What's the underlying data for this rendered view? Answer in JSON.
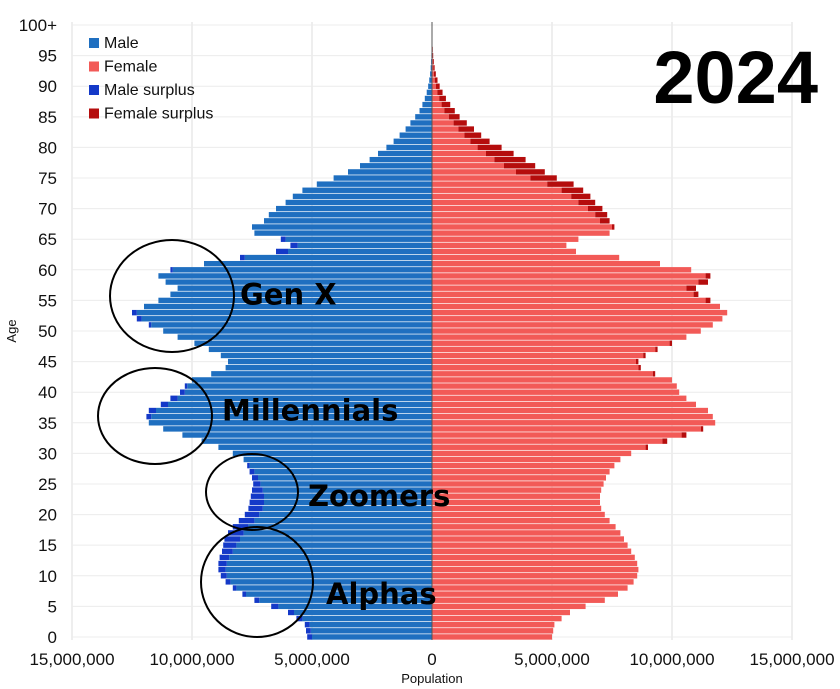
{
  "chart_data": {
    "type": "bar",
    "orientation": "horizontal-population-pyramid",
    "year_label": "2024",
    "xlabel": "Population",
    "ylabel": "Age",
    "xlim": [
      -15000000,
      15000000
    ],
    "x_ticks": [
      {
        "value": -15000000,
        "label": "15,000,000"
      },
      {
        "value": -10000000,
        "label": "10,000,000"
      },
      {
        "value": -5000000,
        "label": "5,000,000"
      },
      {
        "value": 0,
        "label": "0"
      },
      {
        "value": 5000000,
        "label": "5,000,000"
      },
      {
        "value": 10000000,
        "label": "10,000,000"
      },
      {
        "value": 15000000,
        "label": "15,000,000"
      }
    ],
    "y_ticks": [
      {
        "value": 0,
        "label": "0"
      },
      {
        "value": 5,
        "label": "5"
      },
      {
        "value": 10,
        "label": "10"
      },
      {
        "value": 15,
        "label": "15"
      },
      {
        "value": 20,
        "label": "20"
      },
      {
        "value": 25,
        "label": "25"
      },
      {
        "value": 30,
        "label": "30"
      },
      {
        "value": 35,
        "label": "35"
      },
      {
        "value": 40,
        "label": "40"
      },
      {
        "value": 45,
        "label": "45"
      },
      {
        "value": 50,
        "label": "50"
      },
      {
        "value": 55,
        "label": "55"
      },
      {
        "value": 60,
        "label": "60"
      },
      {
        "value": 65,
        "label": "65"
      },
      {
        "value": 70,
        "label": "70"
      },
      {
        "value": 75,
        "label": "75"
      },
      {
        "value": 80,
        "label": "80"
      },
      {
        "value": 85,
        "label": "85"
      },
      {
        "value": 90,
        "label": "90"
      },
      {
        "value": 95,
        "label": "95"
      },
      {
        "value": 100,
        "label": "100+"
      }
    ],
    "legend_position": "top-left",
    "grid": true,
    "series": [
      {
        "name": "Male",
        "color": "#1f6fc0"
      },
      {
        "name": "Female",
        "color": "#f25a57"
      },
      {
        "name": "Male surplus",
        "color": "#1439c8"
      },
      {
        "name": "Female surplus",
        "color": "#b50d0d"
      }
    ],
    "ages": [
      0,
      1,
      2,
      3,
      4,
      5,
      6,
      7,
      8,
      9,
      10,
      11,
      12,
      13,
      14,
      15,
      16,
      17,
      18,
      19,
      20,
      21,
      22,
      23,
      24,
      25,
      26,
      27,
      28,
      29,
      30,
      31,
      32,
      33,
      34,
      35,
      36,
      37,
      38,
      39,
      40,
      41,
      42,
      43,
      44,
      45,
      46,
      47,
      48,
      49,
      50,
      51,
      52,
      53,
      54,
      55,
      56,
      57,
      58,
      59,
      60,
      61,
      62,
      63,
      64,
      65,
      66,
      67,
      68,
      69,
      70,
      71,
      72,
      73,
      74,
      75,
      76,
      77,
      78,
      79,
      80,
      81,
      82,
      83,
      84,
      85,
      86,
      87,
      88,
      89,
      90,
      91,
      92,
      93,
      94,
      95,
      96,
      97,
      98,
      99,
      100
    ],
    "male": [
      5200000,
      5250000,
      5300000,
      5650000,
      6000000,
      6700000,
      7400000,
      7900000,
      8300000,
      8600000,
      8800000,
      8900000,
      8900000,
      8850000,
      8750000,
      8700000,
      8650000,
      8500000,
      8300000,
      8050000,
      7800000,
      7650000,
      7600000,
      7550000,
      7500000,
      7450000,
      7500000,
      7600000,
      7700000,
      7850000,
      8300000,
      8900000,
      9600000,
      10400000,
      11200000,
      11800000,
      11900000,
      11800000,
      11300000,
      10900000,
      10500000,
      10300000,
      10000000,
      9200000,
      8600000,
      8500000,
      8800000,
      9300000,
      9900000,
      10600000,
      11200000,
      11800000,
      12300000,
      12500000,
      12000000,
      11400000,
      10900000,
      10600000,
      11100000,
      11400000,
      10900000,
      9500000,
      8000000,
      6500000,
      5900000,
      6300000,
      7400000,
      7500000,
      7000000,
      6800000,
      6500000,
      6100000,
      5800000,
      5400000,
      4800000,
      4100000,
      3500000,
      3000000,
      2600000,
      2250000,
      1900000,
      1600000,
      1350000,
      1100000,
      900000,
      700000,
      520000,
      400000,
      300000,
      220000,
      160000,
      115000,
      80000,
      55000,
      38000,
      25000,
      15000,
      10000,
      6000,
      3000,
      2000
    ],
    "female": [
      5000000,
      5050000,
      5100000,
      5400000,
      5750000,
      6400000,
      7200000,
      7750000,
      8150000,
      8400000,
      8550000,
      8600000,
      8550000,
      8450000,
      8300000,
      8150000,
      8000000,
      7850000,
      7650000,
      7400000,
      7200000,
      7050000,
      7000000,
      7000000,
      7050000,
      7150000,
      7250000,
      7400000,
      7600000,
      7850000,
      8300000,
      9000000,
      9800000,
      10600000,
      11300000,
      11800000,
      11700000,
      11500000,
      11000000,
      10600000,
      10300000,
      10200000,
      10000000,
      9300000,
      8700000,
      8600000,
      8900000,
      9400000,
      10000000,
      10600000,
      11200000,
      11700000,
      12100000,
      12300000,
      12000000,
      11600000,
      11100000,
      11000000,
      11500000,
      11600000,
      10800000,
      9500000,
      7800000,
      6000000,
      5600000,
      6100000,
      7400000,
      7600000,
      7400000,
      7300000,
      7100000,
      6800000,
      6600000,
      6300000,
      5900000,
      5200000,
      4700000,
      4300000,
      3900000,
      3400000,
      2900000,
      2400000,
      2050000,
      1750000,
      1450000,
      1150000,
      950000,
      760000,
      580000,
      440000,
      320000,
      230000,
      160000,
      110000,
      75000,
      50000,
      32000,
      20000,
      12000,
      7000,
      4000
    ]
  },
  "legend": [
    {
      "label": "Male",
      "color": "#1f6fc0"
    },
    {
      "label": "Female",
      "color": "#f25a57"
    },
    {
      "label": "Male surplus",
      "color": "#1439c8"
    },
    {
      "label": "Female surplus",
      "color": "#b50d0d"
    }
  ],
  "annotations": [
    {
      "label": "Gen X",
      "age_low": 48,
      "age_high": 62,
      "label_age": 56
    },
    {
      "label": "Millennials",
      "age_low": 30,
      "age_high": 43,
      "label_age": 37
    },
    {
      "label": "Zoomers",
      "age_low": 18,
      "age_high": 29,
      "label_age": 23
    },
    {
      "label": "Alphas",
      "age_low": 0,
      "age_high": 17,
      "label_age": 7
    }
  ]
}
